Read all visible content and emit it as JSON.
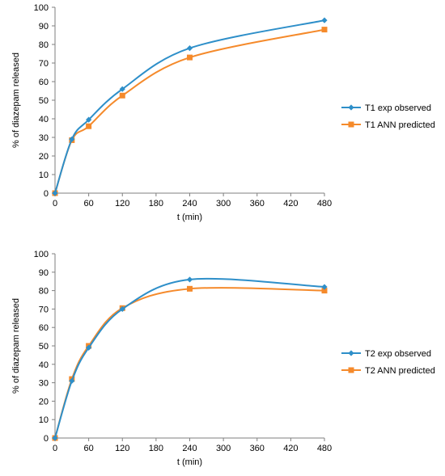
{
  "chart_data": [
    {
      "type": "line",
      "xlabel": "t (min)",
      "ylabel": "% of diazepam released",
      "xticks": [
        0,
        60,
        120,
        180,
        240,
        300,
        360,
        420,
        480
      ],
      "yticks": [
        0,
        10,
        20,
        30,
        40,
        50,
        60,
        70,
        80,
        90,
        100
      ],
      "xlim": [
        0,
        480
      ],
      "ylim": [
        0,
        100
      ],
      "grid": false,
      "legend_position": "right",
      "series": [
        {
          "name": "T1 exp observed",
          "color": "#2e8fc9",
          "marker": "diamond",
          "x": [
            0,
            30,
            60,
            120,
            240,
            480
          ],
          "y": [
            0,
            29,
            39.5,
            56,
            78,
            93
          ]
        },
        {
          "name": "T1 ANN predicted",
          "color": "#f58a2b",
          "marker": "square",
          "x": [
            0,
            30,
            60,
            120,
            240,
            480
          ],
          "y": [
            0,
            28.5,
            36,
            52.5,
            73,
            88
          ]
        }
      ]
    },
    {
      "type": "line",
      "xlabel": "t (min)",
      "ylabel": "% of diazepam released",
      "xticks": [
        0,
        60,
        120,
        180,
        240,
        300,
        360,
        420,
        480
      ],
      "yticks": [
        0,
        10,
        20,
        30,
        40,
        50,
        60,
        70,
        80,
        90,
        100
      ],
      "xlim": [
        0,
        480
      ],
      "ylim": [
        0,
        100
      ],
      "grid": false,
      "legend_position": "right",
      "series": [
        {
          "name": "T2 exp observed",
          "color": "#2e8fc9",
          "marker": "diamond",
          "x": [
            0,
            30,
            60,
            120,
            240,
            480
          ],
          "y": [
            0,
            31,
            49,
            70,
            86,
            82
          ]
        },
        {
          "name": "T2 ANN predicted",
          "color": "#f58a2b",
          "marker": "square",
          "x": [
            0,
            30,
            60,
            120,
            240,
            480
          ],
          "y": [
            0,
            32,
            50,
            70.5,
            81,
            80
          ]
        }
      ]
    }
  ]
}
